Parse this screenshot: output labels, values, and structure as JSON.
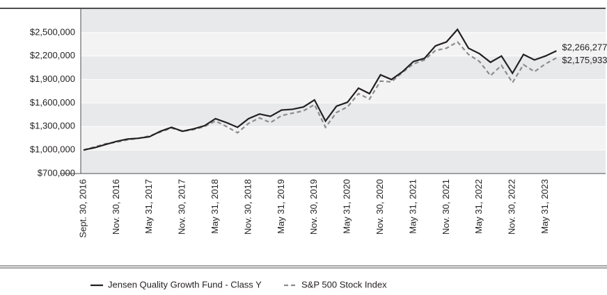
{
  "chart_data": {
    "type": "line",
    "categories": [
      "Sept. 30, 2016",
      null,
      null,
      "Nov. 30, 2016",
      null,
      null,
      "May 31, 2017",
      null,
      null,
      "Nov. 30, 2017",
      null,
      null,
      "May 31, 2018",
      null,
      null,
      "Nov. 30, 2018",
      null,
      null,
      "May 31, 2019",
      null,
      null,
      "Nov. 30, 2019",
      null,
      null,
      "May 31, 2020",
      null,
      null,
      "Nov. 30, 2020",
      null,
      null,
      "May 31, 2021",
      null,
      null,
      "Nov. 30, 2021",
      null,
      null,
      "May 31, 2022",
      null,
      null,
      "Nov. 30, 2022",
      null,
      null,
      "May 31, 2023",
      null
    ],
    "series": [
      {
        "name": "Jensen Quality Growth Fund - Class Y",
        "color": "#231f20",
        "dash": false,
        "values": [
          1000000,
          1030000,
          1070000,
          1110000,
          1140000,
          1150000,
          1170000,
          1240000,
          1290000,
          1240000,
          1270000,
          1310000,
          1400000,
          1350000,
          1290000,
          1400000,
          1460000,
          1430000,
          1510000,
          1520000,
          1550000,
          1640000,
          1370000,
          1560000,
          1610000,
          1790000,
          1720000,
          1960000,
          1900000,
          2000000,
          2130000,
          2170000,
          2330000,
          2380000,
          2540000,
          2300000,
          2230000,
          2120000,
          2200000,
          1980000,
          2220000,
          2150000,
          2200000,
          2266277
        ],
        "value_labels": [
          null,
          null,
          null,
          null,
          null,
          null,
          null,
          null,
          null,
          null,
          null,
          null,
          null,
          null,
          null,
          null,
          null,
          null,
          null,
          null,
          null,
          null,
          null,
          null,
          null,
          null,
          null,
          null,
          null,
          null,
          null,
          null,
          null,
          null,
          null,
          null,
          null,
          null,
          null,
          null,
          null,
          null,
          null,
          "$2,266,277"
        ]
      },
      {
        "name": "S&P 500 Stock Index",
        "color": "#8c8c8c",
        "dash": true,
        "values": [
          1000000,
          1040000,
          1080000,
          1100000,
          1130000,
          1150000,
          1180000,
          1230000,
          1280000,
          1240000,
          1260000,
          1300000,
          1370000,
          1300000,
          1220000,
          1340000,
          1410000,
          1350000,
          1440000,
          1470000,
          1500000,
          1580000,
          1290000,
          1480000,
          1550000,
          1720000,
          1650000,
          1880000,
          1870000,
          1990000,
          2100000,
          2150000,
          2270000,
          2300000,
          2380000,
          2220000,
          2130000,
          1950000,
          2080000,
          1860000,
          2090000,
          2000000,
          2100000,
          2175933
        ],
        "value_labels": [
          null,
          null,
          null,
          null,
          null,
          null,
          null,
          null,
          null,
          null,
          null,
          null,
          null,
          null,
          null,
          null,
          null,
          null,
          null,
          null,
          null,
          null,
          null,
          null,
          null,
          null,
          null,
          null,
          null,
          null,
          null,
          null,
          null,
          null,
          null,
          null,
          null,
          null,
          null,
          null,
          null,
          null,
          null,
          "$2,175,933"
        ]
      }
    ],
    "ylim": [
      700000,
      2800000
    ],
    "yticks": [
      {
        "value": 700000,
        "label": "$700,000"
      },
      {
        "value": 1000000,
        "label": "$1,000,000"
      },
      {
        "value": 1300000,
        "label": "$1,300,000"
      },
      {
        "value": 1600000,
        "label": "$1,600,000"
      },
      {
        "value": 1900000,
        "label": "$1,900,000"
      },
      {
        "value": 2200000,
        "label": "$2,200,000"
      },
      {
        "value": 2500000,
        "label": "$2,500,000"
      }
    ],
    "grid": true
  }
}
